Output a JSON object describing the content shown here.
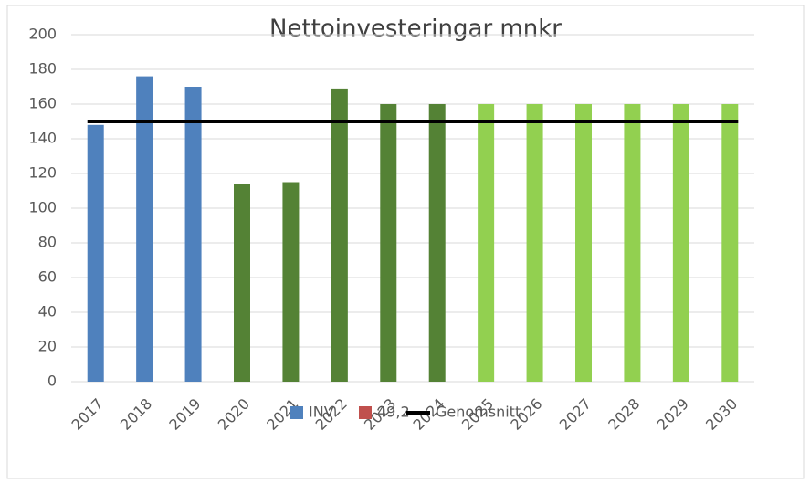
{
  "chart_data": {
    "type": "bar",
    "title": "Nettoinvesteringar mnkr",
    "categories": [
      "2017",
      "2018",
      "2019",
      "2020",
      "2021",
      "2022",
      "2023",
      "2024",
      "2025",
      "2026",
      "2027",
      "2028",
      "2029",
      "2030"
    ],
    "series": [
      {
        "name": "INV",
        "color": "#4f81bd",
        "bar_colors": [
          "#4f81bd",
          "#4f81bd",
          "#4f81bd",
          "#548235",
          "#548235",
          "#548235",
          "#548235",
          "#548235",
          "#92d050",
          "#92d050",
          "#92d050",
          "#92d050",
          "#92d050",
          "#92d050"
        ],
        "values": [
          148,
          176,
          170,
          114,
          115,
          169,
          160,
          160,
          160,
          160,
          160,
          160,
          160,
          160
        ]
      },
      {
        "name": "49,2",
        "color": "#c0504d",
        "values": [
          null,
          null,
          null,
          null,
          null,
          null,
          null,
          null,
          null,
          null,
          null,
          null,
          null,
          null
        ]
      },
      {
        "name": "Genomsnitt",
        "type": "line",
        "color": "#000000",
        "values": [
          150,
          150,
          150,
          150,
          150,
          150,
          150,
          150,
          150,
          150,
          150,
          150,
          150,
          150
        ]
      }
    ],
    "ylim": [
      0,
      200
    ],
    "yticks": [
      0,
      20,
      40,
      60,
      80,
      100,
      120,
      140,
      160,
      180,
      200
    ],
    "grid": true
  }
}
